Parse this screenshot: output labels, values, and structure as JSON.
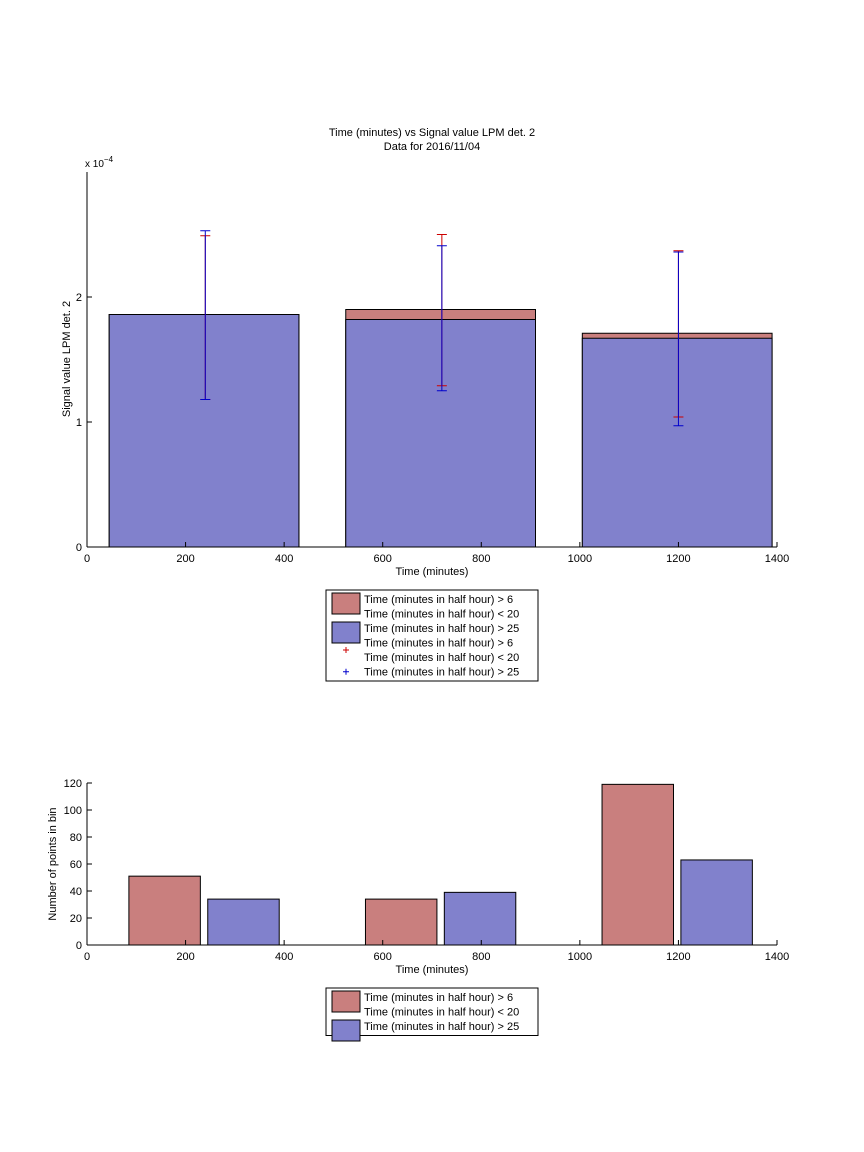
{
  "colors": {
    "red_series": "#c97f7e",
    "blue_series": "#8181cc",
    "err_red": "#cc0000",
    "err_blue": "#0000cc"
  },
  "chart_data": [
    {
      "type": "bar",
      "title": "Time (minutes) vs Signal value LPM det. 2",
      "subtitle": "Data for 2016/11/04",
      "xlabel": "Time (minutes)",
      "ylabel": "Signal value LPM det. 2",
      "exponent_label": "x 10",
      "exponent_power": "−4",
      "xlim": [
        0,
        1400
      ],
      "ylim": [
        0,
        3
      ],
      "xticks": [
        "0",
        "200",
        "400",
        "600",
        "800",
        "1000",
        "1200",
        "1400"
      ],
      "yticks": [
        "0",
        "1",
        "2"
      ],
      "bar_ranges": [
        [
          45,
          430
        ],
        [
          525,
          910
        ],
        [
          1005,
          1390
        ]
      ],
      "series": [
        {
          "name": "Time (minutes in half hour) > 6\nTime (minutes in half hour) < 20",
          "values": [
            1.86,
            1.9,
            1.71
          ]
        },
        {
          "name": "Time (minutes in half hour) > 25",
          "values": [
            1.86,
            1.82,
            1.67
          ]
        }
      ],
      "error_bars": [
        {
          "series": "red",
          "x": [
            240,
            720,
            1200
          ],
          "low": [
            1.18,
            1.29,
            1.04
          ],
          "high": [
            2.49,
            2.5,
            2.37
          ]
        },
        {
          "series": "blue",
          "x": [
            240,
            720,
            1200
          ],
          "low": [
            1.18,
            1.25,
            0.97
          ],
          "high": [
            2.53,
            2.41,
            2.36
          ]
        }
      ],
      "legend": {
        "position": "below",
        "entries": [
          {
            "kind": "bar",
            "color": "red",
            "line1": "Time (minutes in half hour) > 6",
            "line2": "Time (minutes in half hour) < 20"
          },
          {
            "kind": "bar",
            "color": "blue",
            "line1": "Time (minutes in half hour) > 25"
          },
          {
            "kind": "marker",
            "color": "red",
            "line1": "Time (minutes in half hour) > 6",
            "line2": "Time (minutes in half hour) < 20"
          },
          {
            "kind": "marker",
            "color": "blue",
            "line1": "Time (minutes in half hour) > 25"
          }
        ]
      }
    },
    {
      "type": "bar",
      "xlabel": "Time (minutes)",
      "ylabel": "Number of points in bin",
      "xlim": [
        0,
        1400
      ],
      "ylim": [
        0,
        120
      ],
      "xticks": [
        "0",
        "200",
        "400",
        "600",
        "800",
        "1000",
        "1200",
        "1400"
      ],
      "yticks": [
        "0",
        "20",
        "40",
        "60",
        "80",
        "100",
        "120"
      ],
      "bars": [
        {
          "series": "red",
          "x0": 85,
          "x1": 230,
          "value": 51
        },
        {
          "series": "blue",
          "x0": 245,
          "x1": 390,
          "value": 34
        },
        {
          "series": "red",
          "x0": 565,
          "x1": 710,
          "value": 34
        },
        {
          "series": "blue",
          "x0": 725,
          "x1": 870,
          "value": 39
        },
        {
          "series": "red",
          "x0": 1045,
          "x1": 1190,
          "value": 119
        },
        {
          "series": "blue",
          "x0": 1205,
          "x1": 1350,
          "value": 63
        }
      ],
      "legend": {
        "position": "below",
        "entries": [
          {
            "kind": "bar",
            "color": "red",
            "line1": "Time (minutes in half hour) > 6",
            "line2": "Time (minutes in half hour) < 20"
          },
          {
            "kind": "bar",
            "color": "blue",
            "line1": "Time (minutes in half hour) > 25"
          }
        ]
      }
    }
  ]
}
